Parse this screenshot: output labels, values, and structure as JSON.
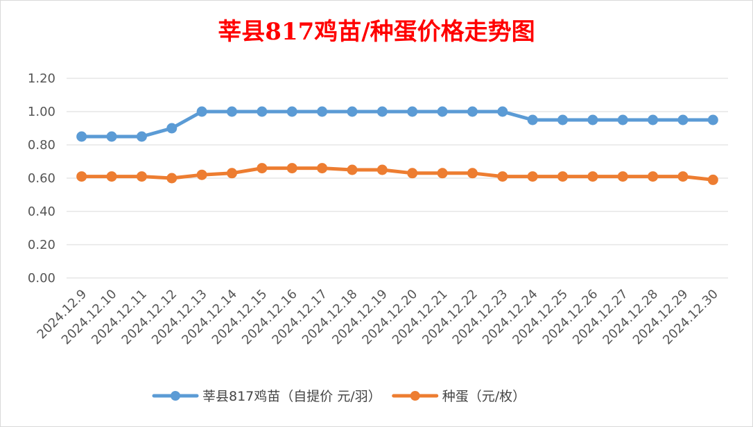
{
  "chart_data": {
    "type": "line",
    "title": "莘县817鸡苗/种蛋价格走势图",
    "categories": [
      "2024.12.9",
      "2024.12.10",
      "2024.12.11",
      "2024.12.12",
      "2024.12.13",
      "2024.12.14",
      "2024.12.15",
      "2024.12.16",
      "2024.12.17",
      "2024.12.18",
      "2024.12.19",
      "2024.12.20",
      "2024.12.21",
      "2024.12.22",
      "2024.12.23",
      "2024.12.24",
      "2024.12.25",
      "2024.12.26",
      "2024.12.27",
      "2024.12.28",
      "2024.12.29",
      "2024.12.30"
    ],
    "ylim": [
      0,
      1.2
    ],
    "yticks": [
      "0.00",
      "0.20",
      "0.40",
      "0.60",
      "0.80",
      "1.00",
      "1.20"
    ],
    "grid": true,
    "legend_position": "bottom",
    "series": [
      {
        "name": "莘县817鸡苗（自提价 元/羽）",
        "color": "#5b9bd5",
        "values": [
          0.85,
          0.85,
          0.85,
          0.9,
          1.0,
          1.0,
          1.0,
          1.0,
          1.0,
          1.0,
          1.0,
          1.0,
          1.0,
          1.0,
          1.0,
          0.95,
          0.95,
          0.95,
          0.95,
          0.95,
          0.95,
          0.95
        ]
      },
      {
        "name": "种蛋（元/枚）",
        "color": "#ed7d31",
        "values": [
          0.61,
          0.61,
          0.61,
          0.6,
          0.62,
          0.63,
          0.66,
          0.66,
          0.66,
          0.65,
          0.65,
          0.63,
          0.63,
          0.63,
          0.61,
          0.61,
          0.61,
          0.61,
          0.61,
          0.61,
          0.61,
          0.59
        ]
      }
    ]
  }
}
